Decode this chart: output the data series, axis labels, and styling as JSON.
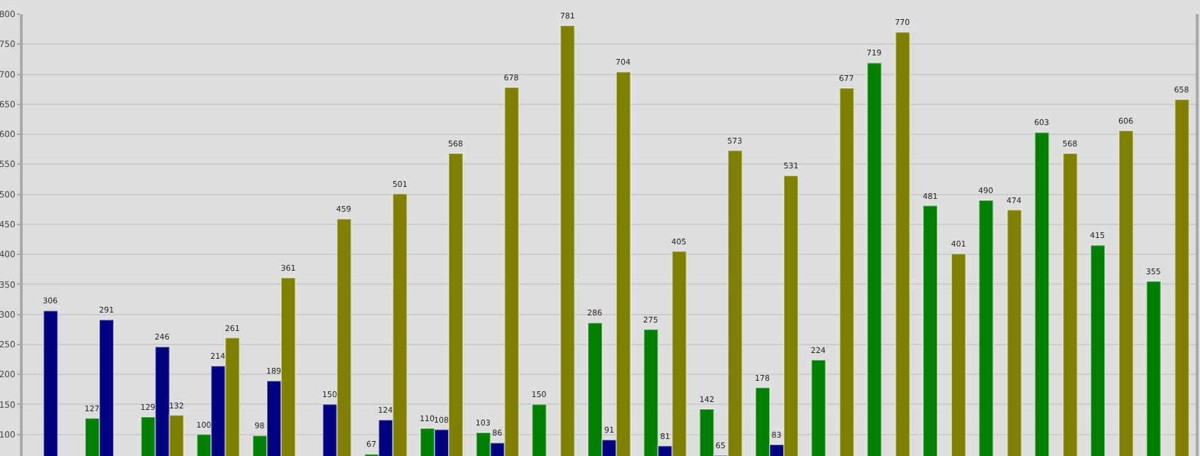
{
  "chart_data": {
    "type": "bar",
    "categories": [
      null,
      null,
      null,
      null,
      null,
      null,
      null,
      null,
      null,
      null,
      null,
      null,
      null,
      null,
      null,
      null,
      null,
      null,
      null,
      null,
      null
    ],
    "series": [
      {
        "color": "#008000",
        "values": [
          null,
          127,
          129,
          100,
          98,
          null,
          67,
          110,
          103,
          150,
          286,
          275,
          142,
          178,
          224,
          719,
          481,
          490,
          603,
          415,
          355
        ]
      },
      {
        "color": "#000080",
        "values": [
          306,
          291,
          246,
          214,
          189,
          150,
          124,
          108,
          86,
          null,
          91,
          81,
          65,
          83,
          null,
          null,
          null,
          null,
          null,
          null,
          null
        ]
      },
      {
        "color": "#808000",
        "values": [
          null,
          null,
          132,
          261,
          361,
          459,
          501,
          568,
          678,
          781,
          704,
          405,
          573,
          531,
          677,
          770,
          401,
          474,
          568,
          606,
          658
        ]
      }
    ],
    "ylim": [
      64,
      800
    ],
    "yticks": [
      100,
      150,
      200,
      250,
      300,
      350,
      400,
      450,
      500,
      550,
      600,
      650,
      700,
      750,
      800
    ],
    "grid": "y",
    "data_labels": true,
    "legend": false
  }
}
